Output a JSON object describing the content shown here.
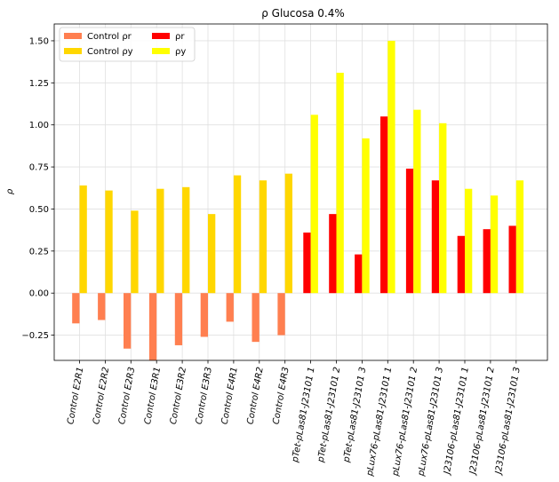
{
  "chart_data": {
    "type": "bar",
    "title": "ρ Glucosa 0.4%",
    "xlabel": "",
    "ylabel": "ρ",
    "ylim": [
      -0.4,
      1.6
    ],
    "yticks": [
      "−0.25",
      "0.00",
      "0.25",
      "0.50",
      "0.75",
      "1.00",
      "1.25",
      "1.50"
    ],
    "ytick_values": [
      -0.25,
      0.0,
      0.25,
      0.5,
      0.75,
      1.0,
      1.25,
      1.5
    ],
    "grid": true,
    "legend_position": "top-left",
    "categories": [
      "Control E2R1",
      "Control E2R2",
      "Control E2R3",
      "Control E3R1",
      "Control E3R2",
      "Control E3R3",
      "Control E4R1",
      "Control E4R2",
      "Control E4R3",
      "pTet-pLas81-J23101 1",
      "pTet-pLas81-J23101 2",
      "pTet-pLas81-J23101 3",
      "pLux76-pLas81-J23101 1",
      "pLux76-pLas81-J23101 2",
      "pLux76-pLas81-J23101 3",
      "J23106-pLas81-J23101 1",
      "J23106-pLas81-J23101 2",
      "J23106-pLas81-J23101 3"
    ],
    "series": [
      {
        "name": "Control ρr",
        "color": "#FF7F50",
        "offset": "left",
        "values": [
          -0.18,
          -0.16,
          -0.33,
          -0.4,
          -0.31,
          -0.26,
          -0.17,
          -0.29,
          -0.25,
          null,
          null,
          null,
          null,
          null,
          null,
          null,
          null,
          null
        ]
      },
      {
        "name": "Control ρy",
        "color": "#FFD700",
        "offset": "right",
        "values": [
          0.64,
          0.61,
          0.49,
          0.62,
          0.63,
          0.47,
          0.7,
          0.67,
          0.71,
          null,
          null,
          null,
          null,
          null,
          null,
          null,
          null,
          null
        ]
      },
      {
        "name": "ρr",
        "color": "#FF0000",
        "offset": "left",
        "values": [
          null,
          null,
          null,
          null,
          null,
          null,
          null,
          null,
          null,
          0.36,
          0.47,
          0.23,
          1.05,
          0.74,
          0.67,
          0.34,
          0.38,
          0.4
        ]
      },
      {
        "name": "ρy",
        "color": "#FFFF00",
        "offset": "right",
        "values": [
          null,
          null,
          null,
          null,
          null,
          null,
          null,
          null,
          null,
          1.06,
          1.31,
          0.92,
          1.5,
          1.09,
          1.01,
          0.62,
          0.58,
          0.67
        ]
      }
    ]
  }
}
